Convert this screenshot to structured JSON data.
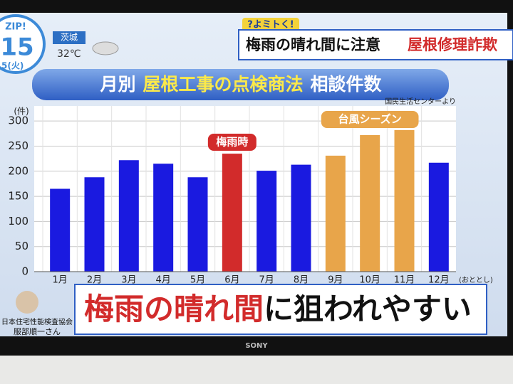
{
  "header": {
    "logo": "ZIP!",
    "day": "15",
    "weekday": "5(火)",
    "place": "茨城",
    "temperature": "32℃",
    "corner": "?よミトく!",
    "headline": "梅雨の晴れ間に注意",
    "topic": "屋根修理詐欺"
  },
  "chart_data": {
    "type": "bar",
    "title": [
      "月別",
      "屋根工事の点検商法",
      "相談件数"
    ],
    "y_unit": "(件)",
    "source": "国民生活センターより",
    "annotations": {
      "rainy_season": "梅雨時",
      "typhoon_season": "台風シーズン"
    },
    "x_note": "(おととし)",
    "categories": [
      "1月",
      "2月",
      "3月",
      "4月",
      "5月",
      "6月",
      "7月",
      "8月",
      "9月",
      "10月",
      "11月",
      "12月"
    ],
    "values": [
      165,
      188,
      222,
      215,
      188,
      235,
      201,
      213,
      231,
      272,
      282,
      217
    ],
    "colors": [
      "#1a1ae0",
      "#1a1ae0",
      "#1a1ae0",
      "#1a1ae0",
      "#1a1ae0",
      "#d22b2b",
      "#1a1ae0",
      "#1a1ae0",
      "#e8a54a",
      "#e8a54a",
      "#e8a54a",
      "#1a1ae0"
    ],
    "ylim": [
      0,
      330
    ],
    "yticks": [
      0,
      50,
      100,
      150,
      200,
      250,
      300
    ],
    "grid": true
  },
  "caption": {
    "highlight": "梅雨の晴れ間",
    "rest": "に狙われやすい"
  },
  "speaker": {
    "organization": "日本住宅性能検査協会",
    "name": "服部順一さん"
  },
  "brand": "SONY"
}
